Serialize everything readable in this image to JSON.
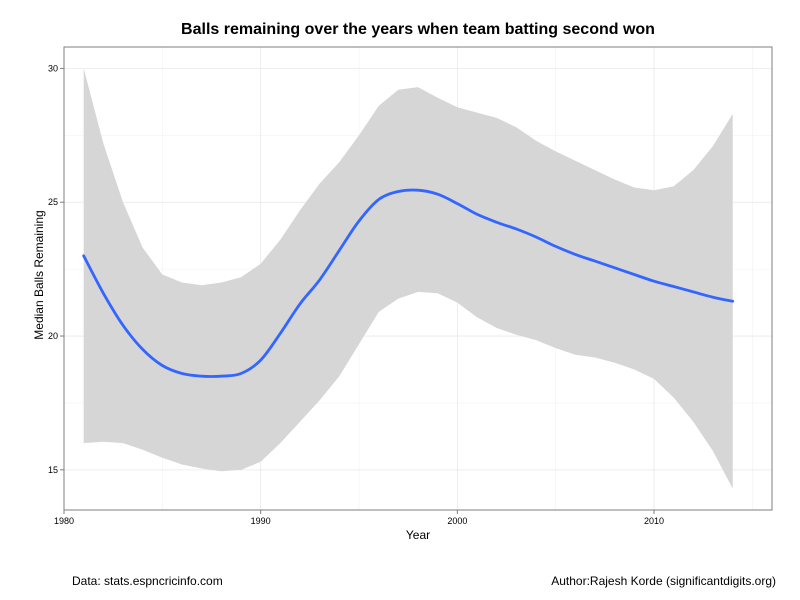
{
  "chart_data": {
    "type": "line",
    "title": "Balls remaining over the years when team batting second won",
    "xlabel": "Year",
    "ylabel": "Median Balls Remaining",
    "xlim": [
      1980,
      2016
    ],
    "ylim": [
      13.5,
      30.8
    ],
    "x_ticks": [
      1980,
      1990,
      2000,
      2010
    ],
    "y_ticks": [
      15,
      20,
      25,
      30
    ],
    "grid": true,
    "series": [
      {
        "color": "#3366ff",
        "x": [
          1981,
          1982,
          1983,
          1984,
          1985,
          1986,
          1987,
          1988,
          1989,
          1990,
          1991,
          1992,
          1993,
          1994,
          1995,
          1996,
          1997,
          1998,
          1999,
          2000,
          2001,
          2002,
          2003,
          2004,
          2005,
          2006,
          2007,
          2008,
          2009,
          2010,
          2011,
          2012,
          2013,
          2014
        ],
        "y": [
          23.0,
          21.6,
          20.4,
          19.5,
          18.9,
          18.6,
          18.5,
          18.5,
          18.6,
          19.1,
          20.1,
          21.2,
          22.1,
          23.2,
          24.3,
          25.1,
          25.4,
          25.45,
          25.3,
          24.95,
          24.55,
          24.25,
          24.0,
          23.7,
          23.35,
          23.05,
          22.8,
          22.55,
          22.3,
          22.05,
          21.85,
          21.65,
          21.45,
          21.3
        ]
      }
    ],
    "confidence_band": {
      "color": "#d6d6d6",
      "x": [
        1981,
        1982,
        1983,
        1984,
        1985,
        1986,
        1987,
        1988,
        1989,
        1990,
        1991,
        1992,
        1993,
        1994,
        1995,
        1996,
        1997,
        1998,
        1999,
        2000,
        2001,
        2002,
        2003,
        2004,
        2005,
        2006,
        2007,
        2008,
        2009,
        2010,
        2011,
        2012,
        2013,
        2014
      ],
      "upper": [
        30.0,
        27.2,
        25.0,
        23.3,
        22.3,
        22.0,
        21.9,
        22.0,
        22.2,
        22.7,
        23.6,
        24.7,
        25.7,
        26.5,
        27.5,
        28.6,
        29.2,
        29.3,
        28.9,
        28.55,
        28.35,
        28.15,
        27.8,
        27.3,
        26.9,
        26.55,
        26.2,
        25.85,
        25.55,
        25.45,
        25.6,
        26.2,
        27.1,
        28.3
      ],
      "lower": [
        16.0,
        16.05,
        16.0,
        15.75,
        15.45,
        15.2,
        15.05,
        14.95,
        15.0,
        15.3,
        16.0,
        16.8,
        17.6,
        18.5,
        19.7,
        20.9,
        21.4,
        21.65,
        21.6,
        21.25,
        20.7,
        20.3,
        20.05,
        19.85,
        19.55,
        19.3,
        19.2,
        19.0,
        18.75,
        18.4,
        17.7,
        16.8,
        15.7,
        14.3
      ]
    }
  },
  "footer": {
    "data_source": "Data: stats.espncricinfo.com",
    "author": "Author:Rajesh Korde (significantdigits.org)"
  }
}
